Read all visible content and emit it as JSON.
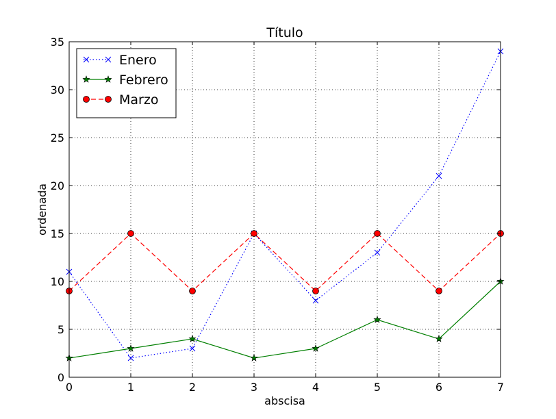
{
  "chart_data": {
    "type": "line",
    "title": "Título",
    "xlabel": "abscisa",
    "ylabel": "ordenada",
    "x": [
      0,
      1,
      2,
      3,
      4,
      5,
      6,
      7
    ],
    "xlim": [
      0,
      7
    ],
    "ylim": [
      0,
      35
    ],
    "xticks": [
      "0",
      "1",
      "2",
      "3",
      "4",
      "5",
      "6",
      "7"
    ],
    "yticks": [
      "0",
      "5",
      "10",
      "15",
      "20",
      "25",
      "30",
      "35"
    ],
    "grid": true,
    "legend_position": "top-left",
    "series": [
      {
        "name": "Enero",
        "values": [
          11,
          2,
          3,
          15,
          8,
          13,
          21,
          34
        ],
        "color": "#0000ff",
        "line_style": "dotted",
        "marker": "x"
      },
      {
        "name": "Febrero",
        "values": [
          2,
          3,
          4,
          2,
          3,
          6,
          4,
          10
        ],
        "color": "#007f00",
        "line_style": "solid",
        "marker": "star"
      },
      {
        "name": "Marzo",
        "values": [
          9,
          15,
          9,
          15,
          9,
          15,
          9,
          15
        ],
        "color": "#ff0000",
        "line_style": "dashed",
        "marker": "circle"
      }
    ]
  }
}
